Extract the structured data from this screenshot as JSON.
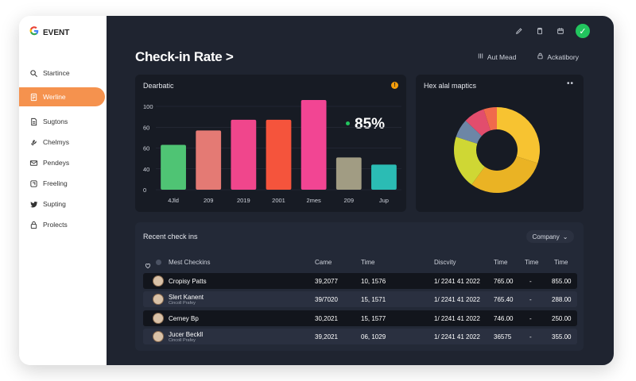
{
  "brand": {
    "name": "EVENT"
  },
  "sidebar": {
    "items": [
      {
        "label": "Startince",
        "icon": "search-icon"
      },
      {
        "label": "Werline",
        "icon": "document-icon",
        "active": true
      },
      {
        "label": "Sugtons",
        "icon": "file-icon"
      },
      {
        "label": "Chelmys",
        "icon": "wrench-icon"
      },
      {
        "label": "Pendeys",
        "icon": "mail-icon"
      },
      {
        "label": "Freeling",
        "icon": "share-icon"
      },
      {
        "label": "Supting",
        "icon": "twitter-icon"
      },
      {
        "label": "Prolects",
        "icon": "lock-icon"
      }
    ]
  },
  "header": {
    "title": "Check-in Rate >",
    "action1": "Aut Mead",
    "action2": "Ackatibory"
  },
  "bar_card": {
    "title": "Dearbatic",
    "big_value": "85%",
    "badge": "!"
  },
  "donut_card": {
    "title": "Hex alal maptics",
    "dots": "••"
  },
  "chart_data": [
    {
      "type": "bar",
      "title": "Dearbatic",
      "categories": [
        "4Jld",
        "209",
        "2019",
        "2001",
        "2mes",
        "209",
        "Jup"
      ],
      "values": [
        50,
        66,
        78,
        78,
        100,
        36,
        28
      ],
      "colors": [
        "#4fc474",
        "#e47a74",
        "#f0468c",
        "#f5543c",
        "#f24593",
        "#a19c83",
        "#2bbcb4"
      ],
      "yticks": [
        "100",
        "60",
        "60",
        "40",
        "0"
      ],
      "ylim": [
        0,
        100
      ]
    },
    {
      "type": "pie",
      "title": "Hex alal maptics",
      "values": [
        30,
        30,
        20,
        7,
        8,
        5
      ],
      "colors": [
        "#f7c331",
        "#eab324",
        "#cfd734",
        "#6d86a6",
        "#e24d6d",
        "#f06a4c"
      ]
    }
  ],
  "table": {
    "title": "Recent check ins",
    "filter_label": "Company",
    "headers": [
      "Mest Checkins",
      "Came",
      "Time",
      "Discvity",
      "Time",
      "Time",
      "Time"
    ],
    "rows": [
      {
        "name": "Cropisy Patts",
        "sub": "",
        "came": "39,2077",
        "time": "10, 1576",
        "discvity": "1/ 2241 41 2022",
        "t1": "765.00",
        "t2": "-",
        "t3": "855.00",
        "style": "dark"
      },
      {
        "name": "Slert Kanent",
        "sub": "Cincoll Prafey",
        "came": "39/7020",
        "time": "15, 1571",
        "discvity": "1/ 2241 41 2022",
        "t1": "765.40",
        "t2": "-",
        "t3": "288.00",
        "style": "light"
      },
      {
        "name": "Cerney Bp",
        "sub": "",
        "came": "30,2021",
        "time": "15, 1577",
        "discvity": "1/ 2241 41 2022",
        "t1": "746.00",
        "t2": "-",
        "t3": "250.00",
        "style": "dark"
      },
      {
        "name": "Jucer Beckll",
        "sub": "Cincoll Prafey",
        "came": "39,2021",
        "time": "06, 1029",
        "discvity": "1/ 2241 41 2022",
        "t1": "36575",
        "t2": "-",
        "t3": "355.00",
        "style": "light"
      }
    ]
  }
}
